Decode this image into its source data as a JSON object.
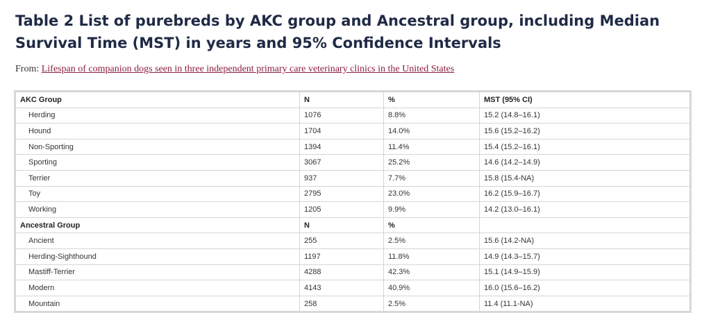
{
  "title": "Table 2 List of purebreds by AKC group and Ancestral group, including Median Survival Time (MST) in years and 95% Confidence Intervals",
  "from_label": "From:",
  "from_link": "Lifespan of companion dogs seen in three independent primary care veterinary clinics in the United States",
  "akc": {
    "header": [
      "AKC Group",
      "N",
      "%",
      "MST (95% CI)"
    ],
    "rows": [
      [
        "Herding",
        "1076",
        "8.8%",
        "15.2 (14.8–16.1)"
      ],
      [
        "Hound",
        "1704",
        "14.0%",
        "15.6 (15.2–16.2)"
      ],
      [
        "Non-Sporting",
        "1394",
        "11.4%",
        "15.4 (15.2–16.1)"
      ],
      [
        "Sporting",
        "3067",
        "25.2%",
        "14.6 (14.2–14.9)"
      ],
      [
        "Terrier",
        "937",
        "7.7%",
        "15.8 (15.4-NA)"
      ],
      [
        "Toy",
        "2795",
        "23.0%",
        "16.2 (15.9–16.7)"
      ],
      [
        "Working",
        "1205",
        "9.9%",
        "14.2 (13.0–16.1)"
      ]
    ]
  },
  "ancestral": {
    "header": [
      "Ancestral Group",
      "N",
      "%",
      ""
    ],
    "rows": [
      [
        "Ancient",
        "255",
        "2.5%",
        "15.6 (14.2-NA)"
      ],
      [
        "Herding-Sighthound",
        "1197",
        "11.8%",
        "14.9 (14.3–15.7)"
      ],
      [
        "Mastiff-Terrier",
        "4288",
        "42.3%",
        "15.1 (14.9–15.9)"
      ],
      [
        "Modern",
        "4143",
        "40.9%",
        "16.0 (15.6–16.2)"
      ],
      [
        "Mountain",
        "258",
        "2.5%",
        "11.4 (11.1-NA)"
      ]
    ]
  }
}
